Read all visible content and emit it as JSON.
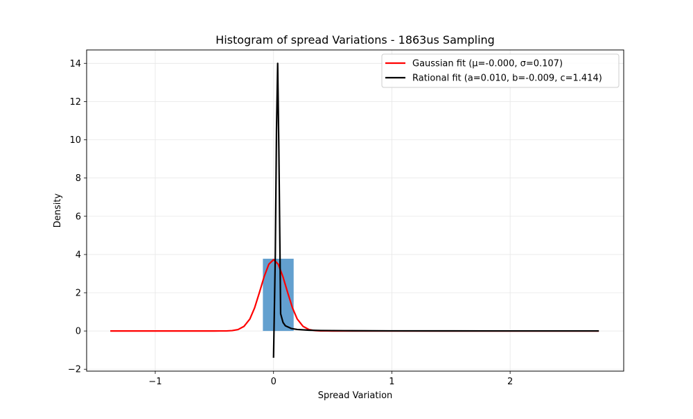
{
  "chart_data": {
    "type": "line",
    "title": "Histogram of spread Variations - 1863us Sampling",
    "xlabel": "Spread Variation",
    "ylabel": "Density",
    "xlim": [
      -1.58,
      2.96
    ],
    "ylim": [
      -2.1,
      14.7
    ],
    "grid": true,
    "legend_position": "top-right",
    "x_ticks": [
      {
        "value": -1,
        "label": "−1"
      },
      {
        "value": 0,
        "label": "0"
      },
      {
        "value": 1,
        "label": "1"
      },
      {
        "value": 2,
        "label": "2"
      }
    ],
    "y_ticks": [
      {
        "value": -2,
        "label": "−2"
      },
      {
        "value": 0,
        "label": "0"
      },
      {
        "value": 2,
        "label": "2"
      },
      {
        "value": 4,
        "label": "4"
      },
      {
        "value": 6,
        "label": "6"
      },
      {
        "value": 8,
        "label": "8"
      },
      {
        "value": 10,
        "label": "10"
      },
      {
        "value": 12,
        "label": "12"
      },
      {
        "value": 14,
        "label": "14"
      }
    ],
    "histogram": {
      "color": "#5b9bcc",
      "bins": [
        {
          "x0": -0.09,
          "x1": 0.17,
          "density": 3.78
        }
      ]
    },
    "series": [
      {
        "name": "Gaussian fit (μ=-0.000, σ=0.107)",
        "color": "#ff0000",
        "x": [
          -1.38,
          -1.2,
          -1.0,
          -0.8,
          -0.6,
          -0.5,
          -0.45,
          -0.4,
          -0.35,
          -0.3,
          -0.25,
          -0.2,
          -0.16,
          -0.12,
          -0.08,
          -0.04,
          0.0,
          0.04,
          0.08,
          0.12,
          0.16,
          0.2,
          0.25,
          0.3,
          0.35,
          0.4,
          0.45,
          0.5,
          0.6,
          0.8,
          1.0,
          1.5,
          2.0,
          2.5,
          2.75
        ],
        "y": [
          0,
          0,
          0,
          0,
          0,
          0,
          0.002,
          0.003,
          0.02,
          0.074,
          0.24,
          0.63,
          1.21,
          2.0,
          2.83,
          3.49,
          3.73,
          3.49,
          2.83,
          2.0,
          1.21,
          0.63,
          0.24,
          0.074,
          0.02,
          0.003,
          0.002,
          0,
          0,
          0,
          0,
          0,
          0,
          0,
          0
        ]
      },
      {
        "name": "Rational fit (a=0.010, b=-0.009, c=1.414)",
        "color": "#000000",
        "x": [
          0.0,
          0.015,
          0.025,
          0.035,
          0.045,
          0.06,
          0.08,
          0.1,
          0.15,
          0.2,
          0.3,
          0.4,
          0.6,
          1.0,
          1.5,
          2.0,
          2.5,
          2.75
        ],
        "y": [
          -1.4,
          4.0,
          10.5,
          14.0,
          9.5,
          0.9,
          0.45,
          0.27,
          0.13,
          0.08,
          0.04,
          0.025,
          0.015,
          0.007,
          0.004,
          0.003,
          0.002,
          0.002
        ]
      }
    ]
  }
}
